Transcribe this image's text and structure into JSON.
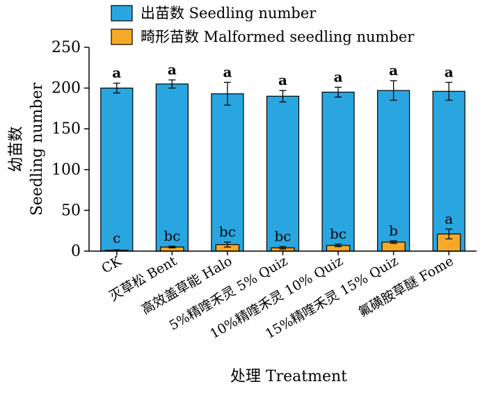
{
  "chart_data": {
    "type": "bar",
    "categories": [
      "CK",
      "灭草松 Bent",
      "高效盖草能 Halo",
      "5%精喹禾灵 5% Quiz",
      "10%精喹禾灵 10% Quiz",
      "15%精喹禾灵 15% Quiz",
      "氟磺胺草醚 Fome"
    ],
    "series": [
      {
        "name": "出苗数 Seedling number",
        "color": "#29a6e0",
        "values": [
          200,
          205,
          193,
          190,
          195,
          197,
          196
        ],
        "errors": [
          6,
          5,
          14,
          7,
          6,
          12,
          11
        ],
        "significance": [
          "a",
          "a",
          "a",
          "a",
          "a",
          "a",
          "a"
        ]
      },
      {
        "name": "畸形苗数 Malformed seedling number",
        "color": "#f6a928",
        "values": [
          1,
          5,
          8,
          4,
          7,
          11,
          21
        ],
        "errors": [
          0.5,
          1,
          3,
          1.5,
          1.5,
          1.5,
          6
        ],
        "significance": [
          "c",
          "bc",
          "bc",
          "bc",
          "bc",
          "b",
          "a"
        ]
      }
    ],
    "xlabel": "处理 Treatment",
    "ylabel": [
      "幼苗数",
      "Seedling number"
    ],
    "ylim": [
      0,
      250
    ],
    "yticks": [
      0,
      50,
      100,
      150,
      200,
      250
    ],
    "grid": false,
    "legend": "top-left"
  }
}
